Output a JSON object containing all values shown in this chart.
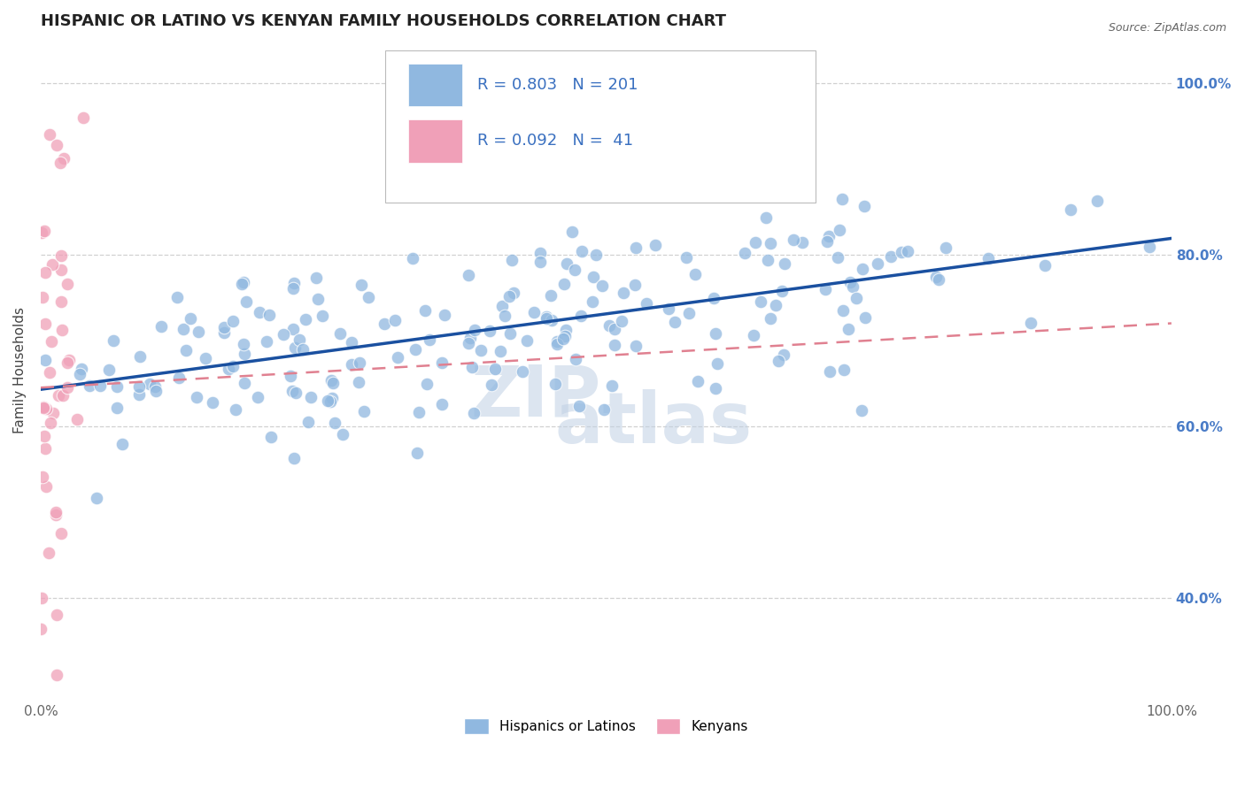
{
  "title": "HISPANIC OR LATINO VS KENYAN FAMILY HOUSEHOLDS CORRELATION CHART",
  "source": "Source: ZipAtlas.com",
  "ylabel": "Family Households",
  "watermark_top": "ZIP",
  "watermark_bottom": "atlas",
  "legend_entries": [
    {
      "label": "Hispanics or Latinos",
      "R": 0.803,
      "N": 201
    },
    {
      "label": "Kenyans",
      "R": 0.092,
      "N": 41
    }
  ],
  "blue_scatter_color": "#90b8e0",
  "pink_scatter_color": "#f0a0b8",
  "blue_line_color": "#1a50a0",
  "pink_line_color": "#e08090",
  "xmin": 0.0,
  "xmax": 1.0,
  "ymin": 0.28,
  "ymax": 1.05,
  "y_ticks": [
    0.4,
    0.6,
    0.8,
    1.0
  ],
  "y_tick_labels": [
    "40.0%",
    "60.0%",
    "80.0%",
    "100.0%"
  ],
  "grid_color": "#d0d0d0",
  "background_color": "#ffffff",
  "title_fontsize": 13,
  "axis_label_fontsize": 11,
  "tick_fontsize": 11,
  "legend_fontsize": 13
}
